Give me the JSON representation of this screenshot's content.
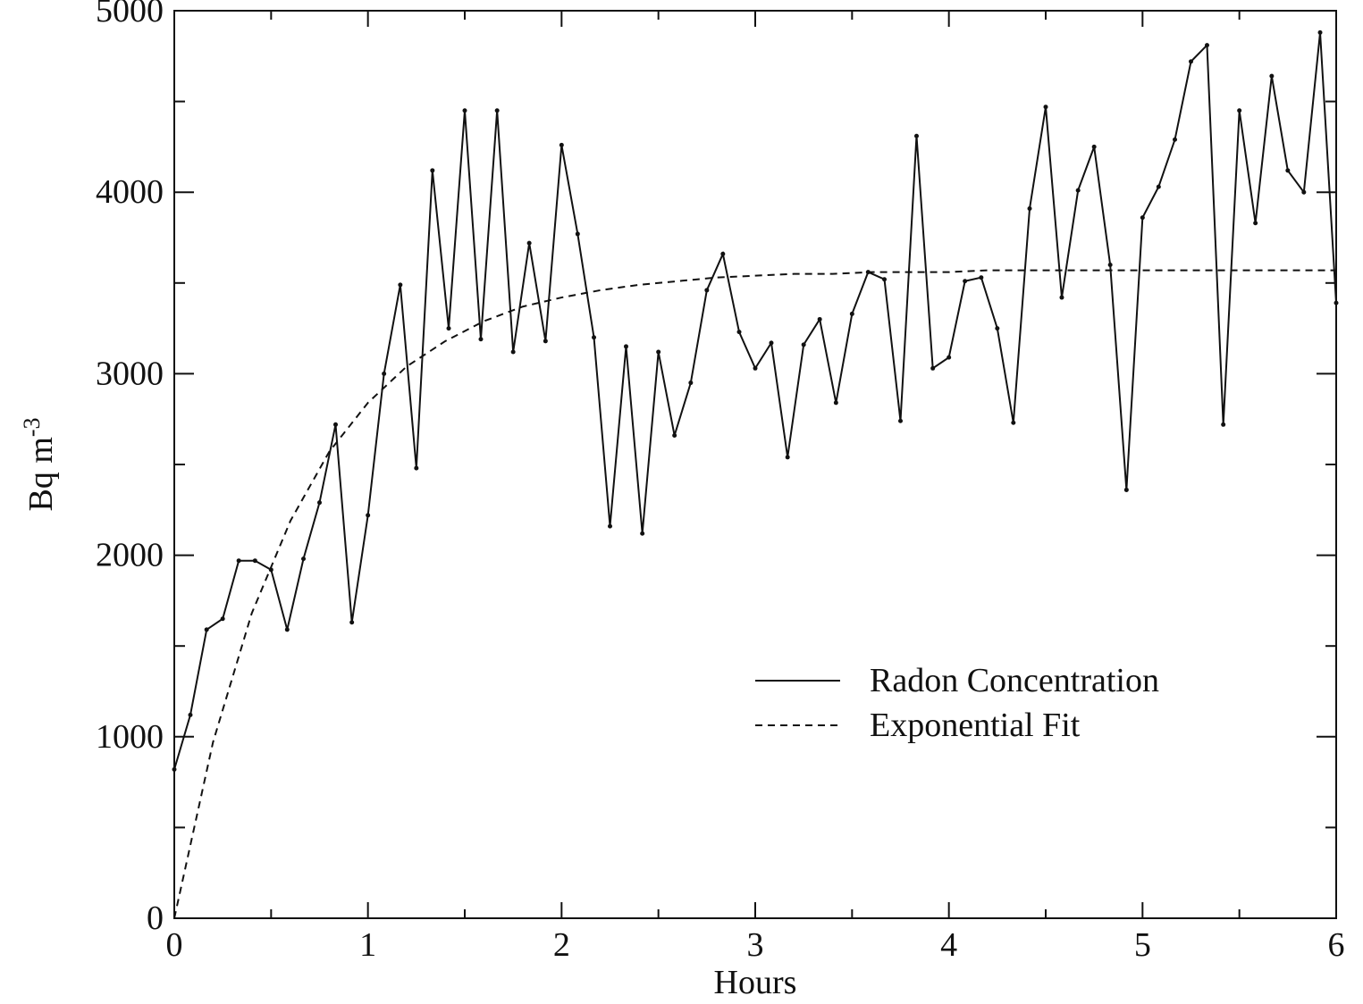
{
  "chart_data": {
    "type": "line",
    "xlabel": "Hours",
    "ylabel": "Bq m",
    "ylabel_superscript": "-3",
    "xlim": [
      0,
      6
    ],
    "xticks": [
      0,
      1,
      2,
      3,
      4,
      5,
      6
    ],
    "ylim": [
      0,
      5000
    ],
    "yticks": [
      0,
      1000,
      2000,
      3000,
      4000,
      5000
    ],
    "legend": "lower right",
    "series": [
      {
        "name": "Radon Concentration",
        "color": "#111111",
        "style": "solid",
        "markers": true,
        "x": [
          0,
          0.083,
          0.167,
          0.25,
          0.333,
          0.417,
          0.5,
          0.583,
          0.667,
          0.75,
          0.833,
          0.917,
          1,
          1.083,
          1.167,
          1.25,
          1.333,
          1.417,
          1.5,
          1.583,
          1.667,
          1.75,
          1.833,
          1.917,
          2,
          2.083,
          2.167,
          2.25,
          2.333,
          2.417,
          2.5,
          2.583,
          2.667,
          2.75,
          2.833,
          2.917,
          3,
          3.083,
          3.167,
          3.25,
          3.333,
          3.417,
          3.5,
          3.583,
          3.667,
          3.75,
          3.833,
          3.917,
          4,
          4.083,
          4.167,
          4.25,
          4.333,
          4.417,
          4.5,
          4.583,
          4.667,
          4.75,
          4.833,
          4.917,
          5,
          5.083,
          5.167,
          5.25,
          5.333,
          5.417,
          5.5,
          5.583,
          5.667,
          5.75,
          5.833,
          5.917,
          6
        ],
        "values": [
          820,
          1120,
          1590,
          1650,
          1970,
          1970,
          1920,
          1590,
          1980,
          2290,
          2720,
          1630,
          2220,
          3000,
          3490,
          2480,
          4120,
          3250,
          4450,
          3190,
          4450,
          3120,
          3720,
          3180,
          4260,
          3770,
          3200,
          2160,
          3150,
          2120,
          3120,
          2660,
          2950,
          3460,
          3660,
          3230,
          3030,
          3170,
          2540,
          3160,
          3300,
          2840,
          3330,
          3560,
          3520,
          2740,
          4310,
          3030,
          3090,
          3510,
          3530,
          3250,
          2730,
          3910,
          4470,
          3420,
          4010,
          4250,
          3600,
          2360,
          3860,
          4030,
          4290,
          4720,
          4810,
          2720,
          4450,
          3830,
          4640,
          4120,
          4000,
          4880,
          3390
        ]
      },
      {
        "name": "Exponential Fit",
        "color": "#111111",
        "style": "dashed",
        "markers": false,
        "x": [
          0,
          0.2,
          0.4,
          0.6,
          0.8,
          1,
          1.2,
          1.4,
          1.6,
          1.8,
          2,
          2.2,
          2.4,
          2.6,
          2.8,
          3,
          3.2,
          3.4,
          3.6,
          3.8,
          4,
          4.2,
          4.4,
          4.6,
          4.8,
          5,
          5.2,
          5.4,
          5.6,
          5.8,
          6
        ],
        "values": [
          0,
          970,
          1680,
          2190,
          2570,
          2840,
          3040,
          3180,
          3290,
          3370,
          3420,
          3460,
          3490,
          3510,
          3530,
          3540,
          3550,
          3550,
          3560,
          3560,
          3560,
          3570,
          3570,
          3570,
          3570,
          3570,
          3570,
          3570,
          3570,
          3570,
          3570
        ]
      }
    ]
  }
}
